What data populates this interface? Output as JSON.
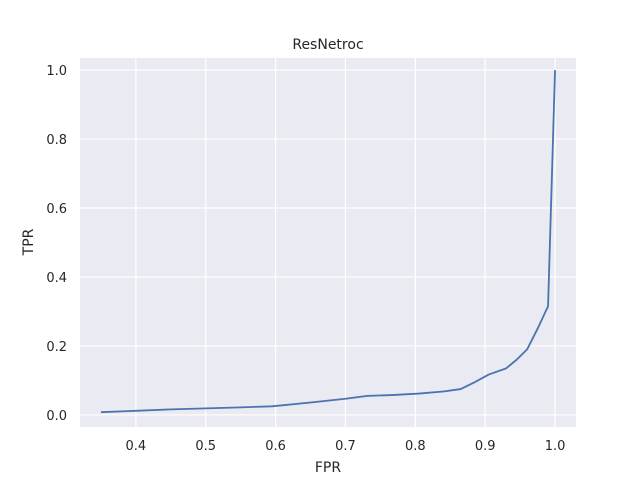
{
  "chart_data": {
    "type": "line",
    "title": "ResNetroc",
    "xlabel": "FPR",
    "ylabel": "TPR",
    "xlim": [
      0.32,
      1.03
    ],
    "ylim": [
      -0.035,
      1.035
    ],
    "xticks": [
      0.4,
      0.5,
      0.6,
      0.7,
      0.8,
      0.9,
      1.0
    ],
    "xtick_labels": [
      "0.4",
      "0.5",
      "0.6",
      "0.7",
      "0.8",
      "0.9",
      "1.0"
    ],
    "yticks": [
      0.0,
      0.2,
      0.4,
      0.6,
      0.8,
      1.0
    ],
    "ytick_labels": [
      "0.0",
      "0.2",
      "0.4",
      "0.6",
      "0.8",
      "1.0"
    ],
    "grid": true,
    "background": "#eaeaf2",
    "series": [
      {
        "color": "#4c72b0",
        "x": [
          0.35,
          0.4,
          0.45,
          0.5,
          0.55,
          0.595,
          0.65,
          0.7,
          0.73,
          0.77,
          0.805,
          0.84,
          0.865,
          0.885,
          0.905,
          0.93,
          0.945,
          0.96,
          0.975,
          0.99,
          1.0
        ],
        "y": [
          0.008,
          0.012,
          0.016,
          0.019,
          0.022,
          0.025,
          0.036,
          0.047,
          0.055,
          0.058,
          0.062,
          0.068,
          0.075,
          0.095,
          0.117,
          0.135,
          0.16,
          0.19,
          0.25,
          0.315,
          1.0
        ]
      }
    ]
  }
}
